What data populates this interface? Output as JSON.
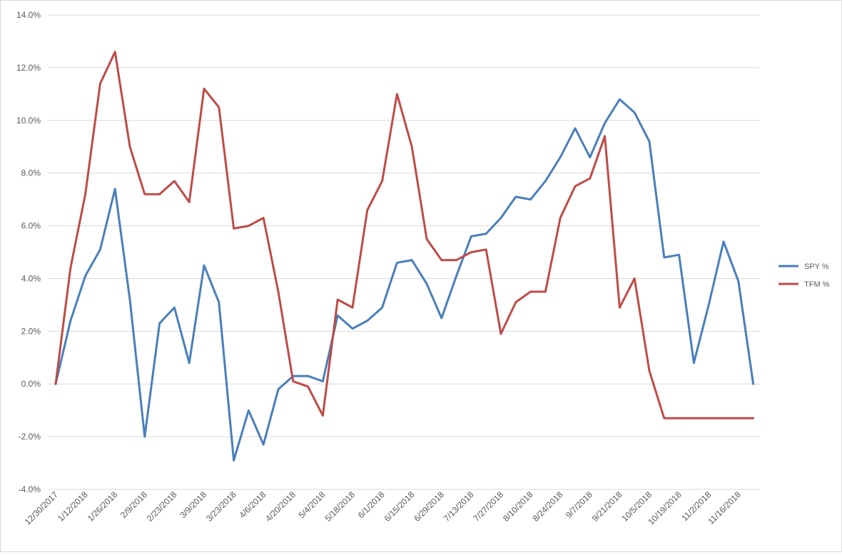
{
  "chart_data": {
    "type": "line",
    "title": "",
    "xlabel": "",
    "ylabel": "",
    "ylim": [
      -0.04,
      0.14
    ],
    "y_ticks": [
      "14.0%",
      "12.0%",
      "10.0%",
      "8.0%",
      "6.0%",
      "4.0%",
      "2.0%",
      "0.0%",
      "-2.0%",
      "-4.0%"
    ],
    "y_tick_values": [
      0.14,
      0.12,
      0.1,
      0.08,
      0.06,
      0.04,
      0.02,
      0.0,
      -0.02,
      -0.04
    ],
    "grid": true,
    "legend_position": "right",
    "x": [
      "12/30/2017",
      "1/5/2018",
      "1/12/2018",
      "1/19/2018",
      "1/26/2018",
      "2/2/2018",
      "2/9/2018",
      "2/16/2018",
      "2/23/2018",
      "3/2/2018",
      "3/9/2018",
      "3/16/2018",
      "3/23/2018",
      "3/30/2018",
      "4/6/2018",
      "4/13/2018",
      "4/20/2018",
      "4/27/2018",
      "5/4/2018",
      "5/11/2018",
      "5/18/2018",
      "5/25/2018",
      "6/1/2018",
      "6/8/2018",
      "6/15/2018",
      "6/22/2018",
      "6/29/2018",
      "7/6/2018",
      "7/13/2018",
      "7/20/2018",
      "7/27/2018",
      "8/3/2018",
      "8/10/2018",
      "8/17/2018",
      "8/24/2018",
      "8/31/2018",
      "9/7/2018",
      "9/14/2018",
      "9/21/2018",
      "9/28/2018",
      "10/5/2018",
      "10/12/2018",
      "10/19/2018",
      "10/26/2018",
      "11/2/2018",
      "11/9/2018",
      "11/16/2018",
      "11/23/2018"
    ],
    "x_tick_labels": [
      "12/30/2017",
      "1/12/2018",
      "1/26/2018",
      "2/9/2018",
      "2/23/2018",
      "3/9/2018",
      "3/23/2018",
      "4/6/2018",
      "4/20/2018",
      "5/4/2018",
      "5/18/2018",
      "6/1/2018",
      "6/15/2018",
      "6/29/2018",
      "7/13/2018",
      "7/27/2018",
      "8/10/2018",
      "8/24/2018",
      "9/7/2018",
      "9/21/2018",
      "10/5/2018",
      "10/19/2018",
      "11/2/2018",
      "11/16/2018"
    ],
    "series": [
      {
        "name": "SPY %",
        "color": "#4a7ebb",
        "values": [
          0.0,
          0.024,
          0.041,
          0.051,
          0.074,
          0.032,
          -0.02,
          0.023,
          0.029,
          0.008,
          0.045,
          0.031,
          -0.029,
          -0.01,
          -0.023,
          -0.002,
          0.003,
          0.003,
          0.001,
          0.026,
          0.021,
          0.024,
          0.029,
          0.046,
          0.047,
          0.038,
          0.025,
          0.041,
          0.056,
          0.057,
          0.063,
          0.071,
          0.07,
          0.077,
          0.086,
          0.097,
          0.086,
          0.099,
          0.108,
          0.103,
          0.092,
          0.048,
          0.049,
          0.008,
          0.03,
          0.054,
          0.039,
          0.0
        ]
      },
      {
        "name": "TFM %",
        "color": "#be4b48",
        "values": [
          0.0,
          0.044,
          0.072,
          0.114,
          0.126,
          0.09,
          0.072,
          0.072,
          0.077,
          0.069,
          0.112,
          0.105,
          0.059,
          0.06,
          0.063,
          0.035,
          0.001,
          -0.001,
          -0.012,
          0.032,
          0.029,
          0.066,
          0.077,
          0.11,
          0.09,
          0.055,
          0.047,
          0.047,
          0.05,
          0.051,
          0.019,
          0.031,
          0.035,
          0.035,
          0.063,
          0.075,
          0.078,
          0.094,
          0.029,
          0.04,
          0.005,
          -0.013,
          -0.013,
          -0.013,
          -0.013,
          -0.013,
          -0.013,
          -0.013
        ]
      }
    ]
  }
}
